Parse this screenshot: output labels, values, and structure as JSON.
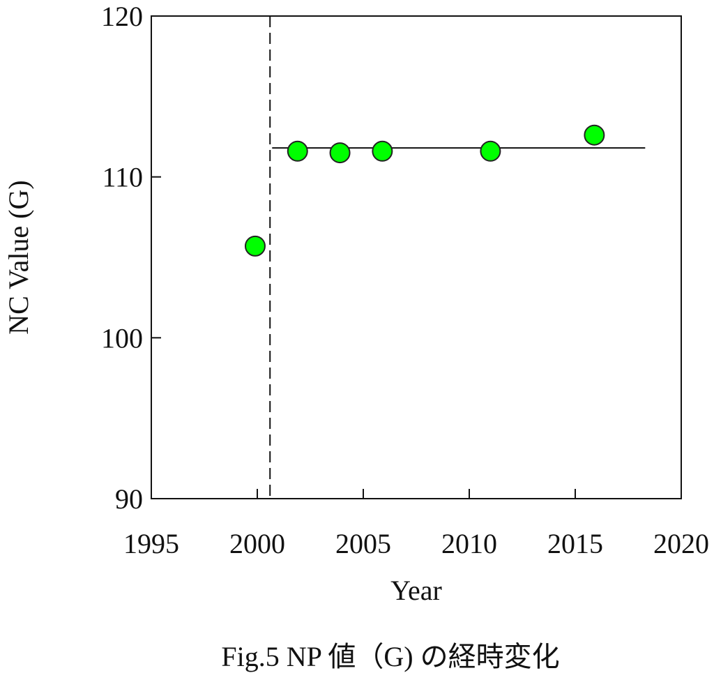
{
  "chart_data": {
    "type": "scatter",
    "xlabel": "Year",
    "ylabel": "NC Value (G)",
    "xlim": [
      1995,
      2020
    ],
    "ylim": [
      90,
      120
    ],
    "x_ticks": [
      "1995",
      "2000",
      "2005",
      "2010",
      "2015",
      "2020"
    ],
    "y_ticks": [
      "90",
      "100",
      "110",
      "120"
    ],
    "points": [
      {
        "x": 1999.9,
        "y": 105.7
      },
      {
        "x": 2001.9,
        "y": 111.6
      },
      {
        "x": 2003.9,
        "y": 111.5
      },
      {
        "x": 2005.9,
        "y": 111.6
      },
      {
        "x": 2011.0,
        "y": 111.6
      },
      {
        "x": 2015.9,
        "y": 112.6
      }
    ],
    "reference_vline": {
      "x": 2000.6,
      "style": "dashed"
    },
    "mean_line": {
      "x_start": 2000.7,
      "x_end": 2018.3,
      "y": 111.8
    },
    "marker_color": "#00ff00",
    "marker_edge_color": "#222222",
    "grid": false,
    "caption": "Fig.5 NP 値（G) の経時変化"
  }
}
